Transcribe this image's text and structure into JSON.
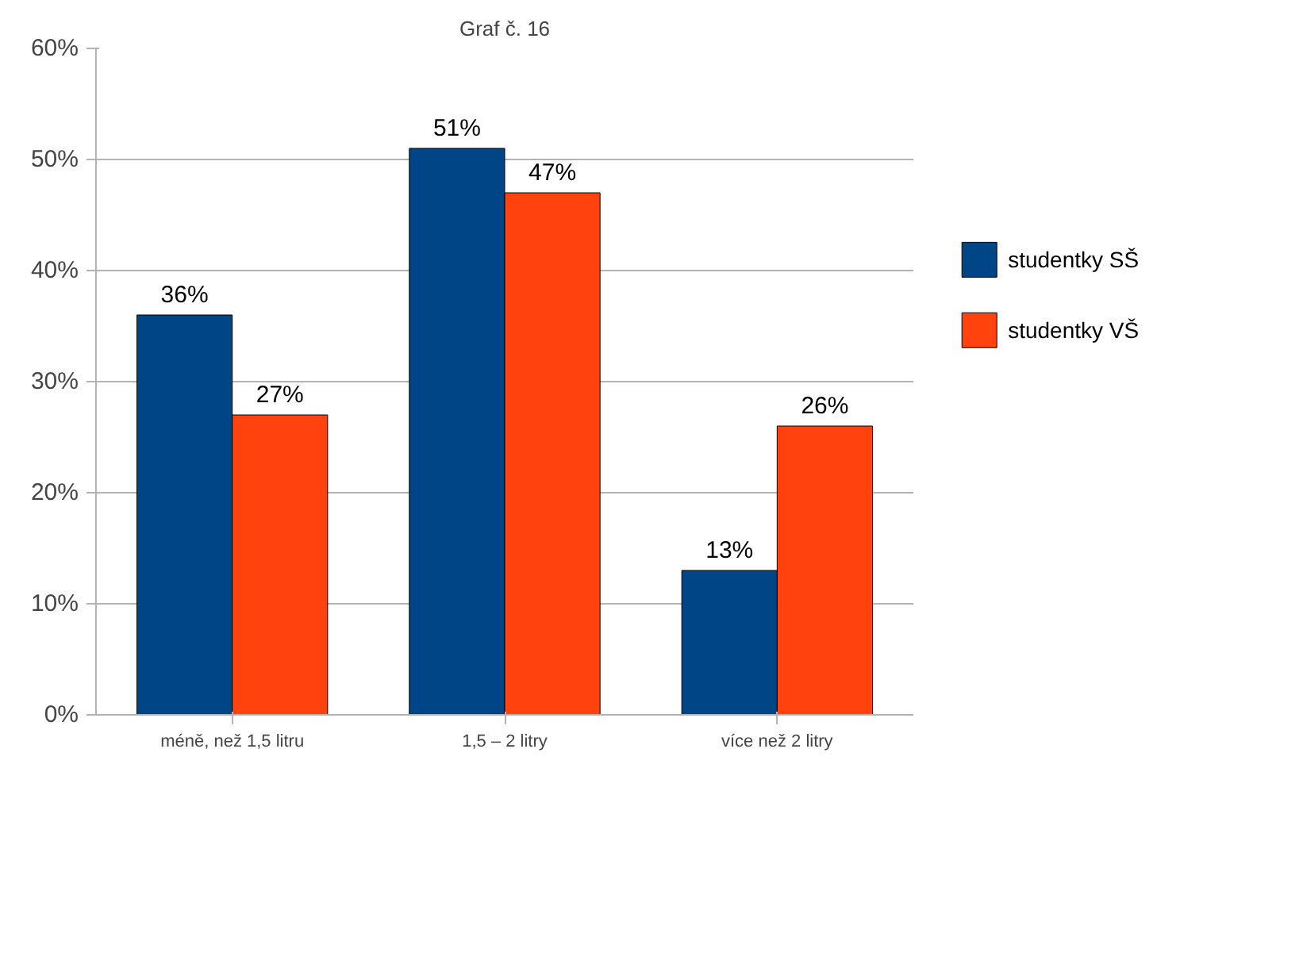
{
  "chart_data": {
    "type": "bar",
    "title": "Graf č. 16",
    "categories": [
      "méně, než 1,5 litru",
      "1,5 – 2 litry",
      "více než 2 litry"
    ],
    "series": [
      {
        "name": "studentky SŠ",
        "color": "#004586",
        "values": [
          36,
          51,
          13
        ],
        "value_labels": [
          "36%",
          "51%",
          "13%"
        ]
      },
      {
        "name": "studentky VŠ",
        "color": "#ff420e",
        "values": [
          27,
          47,
          26
        ],
        "value_labels": [
          "27%",
          "47%",
          "26%"
        ]
      }
    ],
    "ylim": [
      0,
      60
    ],
    "yticks": [
      {
        "value": 0,
        "label": "0%"
      },
      {
        "value": 10,
        "label": "10%"
      },
      {
        "value": 20,
        "label": "20%"
      },
      {
        "value": 30,
        "label": "30%"
      },
      {
        "value": 40,
        "label": "40%"
      },
      {
        "value": 50,
        "label": "50%"
      },
      {
        "value": 60,
        "label": "60%"
      }
    ],
    "grid": "y",
    "legend": "right"
  }
}
